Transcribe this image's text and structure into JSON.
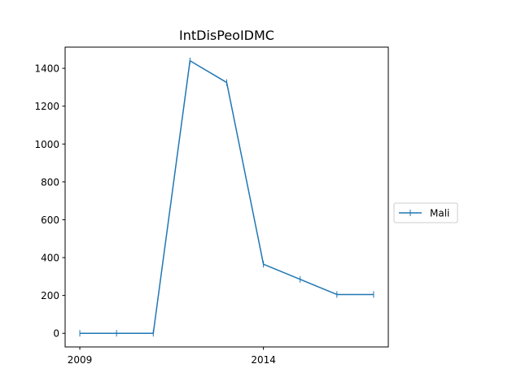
{
  "chart_data": {
    "type": "line",
    "title": "IntDisPeoIDMC",
    "xlabel": "",
    "ylabel": "",
    "x": [
      2009,
      2010,
      2011,
      2012,
      2013,
      2014,
      2015,
      2016,
      2017
    ],
    "series": [
      {
        "name": "Mali",
        "values": [
          0,
          0,
          0,
          1440,
          1325,
          365,
          285,
          205,
          205
        ],
        "color": "#1f77b4",
        "marker": "vertical-tick"
      }
    ],
    "xticks": [
      2009,
      2014
    ],
    "xtick_labels": [
      "2009",
      "2014"
    ],
    "yticks": [
      0,
      200,
      400,
      600,
      800,
      1000,
      1200,
      1400
    ],
    "ytick_labels": [
      "0",
      "200",
      "400",
      "600",
      "800",
      "1000",
      "1200",
      "1400"
    ],
    "xlim": [
      2008.6,
      2017.4
    ],
    "ylim": [
      -72,
      1512
    ],
    "grid": false,
    "legend_position": "right-outside"
  }
}
